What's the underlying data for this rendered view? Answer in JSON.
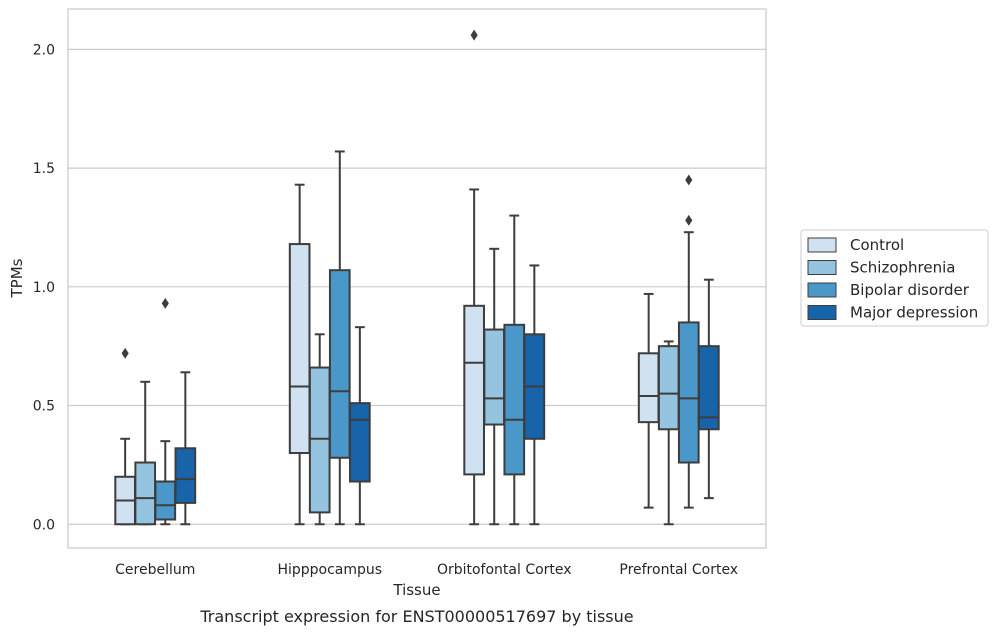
{
  "chart_data": {
    "type": "boxplot",
    "xlabel": "Tissue",
    "ylabel": "TPMs",
    "caption": "Transcript expression for ENST00000517697 by tissue",
    "ylim": [
      -0.1,
      2.17
    ],
    "yticks": [
      "0.0",
      "0.5",
      "1.0",
      "1.5",
      "2.0"
    ],
    "ytick_values": [
      0.0,
      0.5,
      1.0,
      1.5,
      2.0
    ],
    "grid": "horizontal",
    "legend_position": "right, outside plot",
    "categories": [
      "Cerebellum",
      "Hipppocampus",
      "Orbitofontal Cortex",
      "Prefrontal Cortex"
    ],
    "series": [
      {
        "name": "Control",
        "color": "#d0e1f2",
        "boxes": [
          {
            "whislo": 0.0,
            "q1": 0.0,
            "med": 0.1,
            "q3": 0.2,
            "whishi": 0.36,
            "fliers": [
              0.72
            ]
          },
          {
            "whislo": 0.0,
            "q1": 0.3,
            "med": 0.58,
            "q3": 1.18,
            "whishi": 1.43,
            "fliers": []
          },
          {
            "whislo": 0.0,
            "q1": 0.21,
            "med": 0.68,
            "q3": 0.92,
            "whishi": 1.41,
            "fliers": [
              2.06
            ]
          },
          {
            "whislo": 0.07,
            "q1": 0.43,
            "med": 0.54,
            "q3": 0.72,
            "whishi": 0.97,
            "fliers": []
          }
        ]
      },
      {
        "name": "Schizophrenia",
        "color": "#94c4df",
        "boxes": [
          {
            "whislo": 0.0,
            "q1": 0.0,
            "med": 0.11,
            "q3": 0.26,
            "whishi": 0.6,
            "fliers": []
          },
          {
            "whislo": 0.0,
            "q1": 0.05,
            "med": 0.36,
            "q3": 0.66,
            "whishi": 0.8,
            "fliers": []
          },
          {
            "whislo": 0.0,
            "q1": 0.42,
            "med": 0.53,
            "q3": 0.82,
            "whishi": 1.16,
            "fliers": []
          },
          {
            "whislo": 0.0,
            "q1": 0.4,
            "med": 0.55,
            "q3": 0.75,
            "whishi": 0.77,
            "fliers": []
          }
        ]
      },
      {
        "name": "Bipolar disorder",
        "color": "#4a98c9",
        "boxes": [
          {
            "whislo": 0.0,
            "q1": 0.02,
            "med": 0.08,
            "q3": 0.18,
            "whishi": 0.35,
            "fliers": [
              0.93
            ]
          },
          {
            "whislo": 0.0,
            "q1": 0.28,
            "med": 0.56,
            "q3": 1.07,
            "whishi": 1.57,
            "fliers": []
          },
          {
            "whislo": 0.0,
            "q1": 0.21,
            "med": 0.44,
            "q3": 0.84,
            "whishi": 1.3,
            "fliers": []
          },
          {
            "whislo": 0.07,
            "q1": 0.26,
            "med": 0.53,
            "q3": 0.85,
            "whishi": 1.23,
            "fliers": [
              1.28,
              1.45
            ]
          }
        ]
      },
      {
        "name": "Major depression",
        "color": "#1764ab",
        "boxes": [
          {
            "whislo": 0.0,
            "q1": 0.09,
            "med": 0.19,
            "q3": 0.32,
            "whishi": 0.64,
            "fliers": []
          },
          {
            "whislo": 0.0,
            "q1": 0.18,
            "med": 0.44,
            "q3": 0.51,
            "whishi": 0.83,
            "fliers": []
          },
          {
            "whislo": 0.0,
            "q1": 0.36,
            "med": 0.58,
            "q3": 0.8,
            "whishi": 1.09,
            "fliers": []
          },
          {
            "whislo": 0.11,
            "q1": 0.4,
            "med": 0.45,
            "q3": 0.75,
            "whishi": 1.03,
            "fliers": []
          }
        ]
      }
    ]
  }
}
